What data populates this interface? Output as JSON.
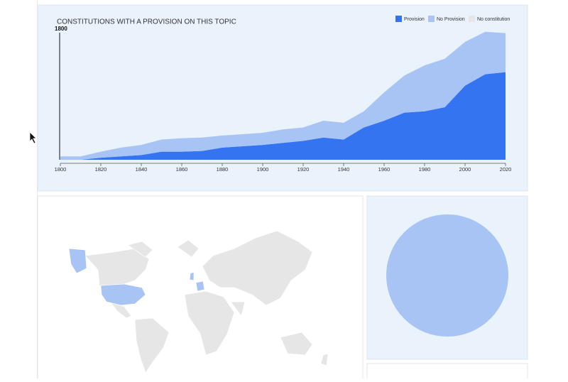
{
  "chart_data": {
    "type": "stacked_area",
    "title": "CONSTITUTIONS WITH A PROVISION ON THIS TOPIC",
    "x": [
      1800,
      1810,
      1820,
      1830,
      1840,
      1850,
      1860,
      1870,
      1880,
      1890,
      1900,
      1910,
      1920,
      1930,
      1940,
      1950,
      1960,
      1970,
      1980,
      1990,
      2000,
      2010,
      2020
    ],
    "series": [
      {
        "name": "Provision",
        "color": "#3574f0",
        "values": [
          0,
          0,
          3,
          5,
          7,
          12,
          12,
          13,
          18,
          20,
          22,
          25,
          28,
          33,
          30,
          48,
          58,
          70,
          72,
          78,
          110,
          127,
          130
        ]
      },
      {
        "name": "No Provision",
        "color": "#a8c4f5",
        "values": [
          5,
          5,
          9,
          13,
          15,
          18,
          20,
          20,
          18,
          18,
          18,
          20,
          20,
          25,
          25,
          24,
          42,
          55,
          68,
          72,
          65,
          63,
          58
        ]
      },
      {
        "name": "No constitution",
        "color": "#e6e6e6",
        "values": [
          null,
          null,
          null,
          null,
          null,
          null,
          null,
          null,
          null,
          null,
          null,
          null,
          null,
          null,
          null,
          null,
          null,
          null,
          null,
          null,
          null,
          null,
          null
        ]
      }
    ],
    "xlim": [
      1800,
      2020
    ],
    "xticks": [
      1800,
      1820,
      1840,
      1860,
      1880,
      1900,
      1920,
      1940,
      1960,
      1980,
      2000,
      2020
    ],
    "ylim": [
      0,
      195
    ],
    "legend": "top-right",
    "selected_year": 1800
  }
}
